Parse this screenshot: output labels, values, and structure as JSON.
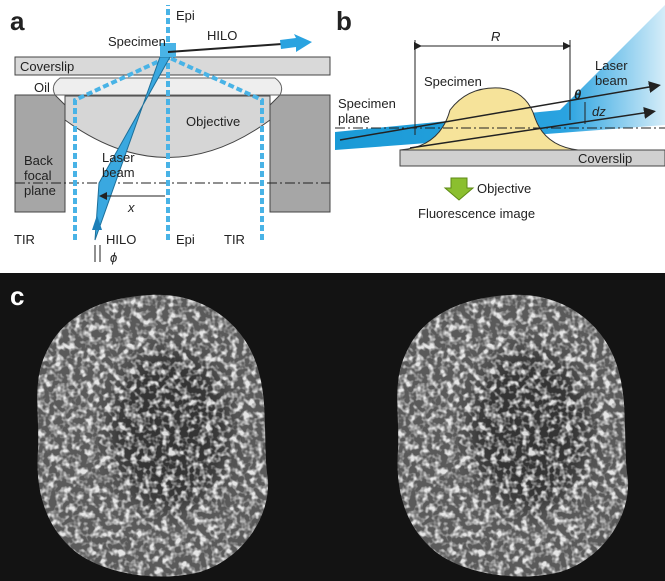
{
  "panel_a": {
    "label": "a",
    "epi_top": "Epi",
    "specimen": "Specimen",
    "hilo_top": "HILO",
    "coverslip": "Coverslip",
    "oil": "Oil",
    "objective": "Objective",
    "back_focal_plane": [
      "Back",
      "focal",
      "plane"
    ],
    "laser_beam": [
      "Laser",
      "beam"
    ],
    "x": "x",
    "tir_left": "TIR",
    "hilo_bottom": "HILO",
    "epi_bottom": "Epi",
    "tir_right": "TIR",
    "phi": "ϕ"
  },
  "panel_b": {
    "label": "b",
    "r": "R",
    "specimen": "Specimen",
    "laser_beam": [
      "Laser",
      "beam"
    ],
    "theta": "θ",
    "dz": "dz",
    "specimen_plane": [
      "Specimen",
      "plane"
    ],
    "coverslip": "Coverslip",
    "objective": "Objective",
    "fluorescence_image": "Fluorescence image"
  },
  "panel_c": {
    "label": "c"
  }
}
